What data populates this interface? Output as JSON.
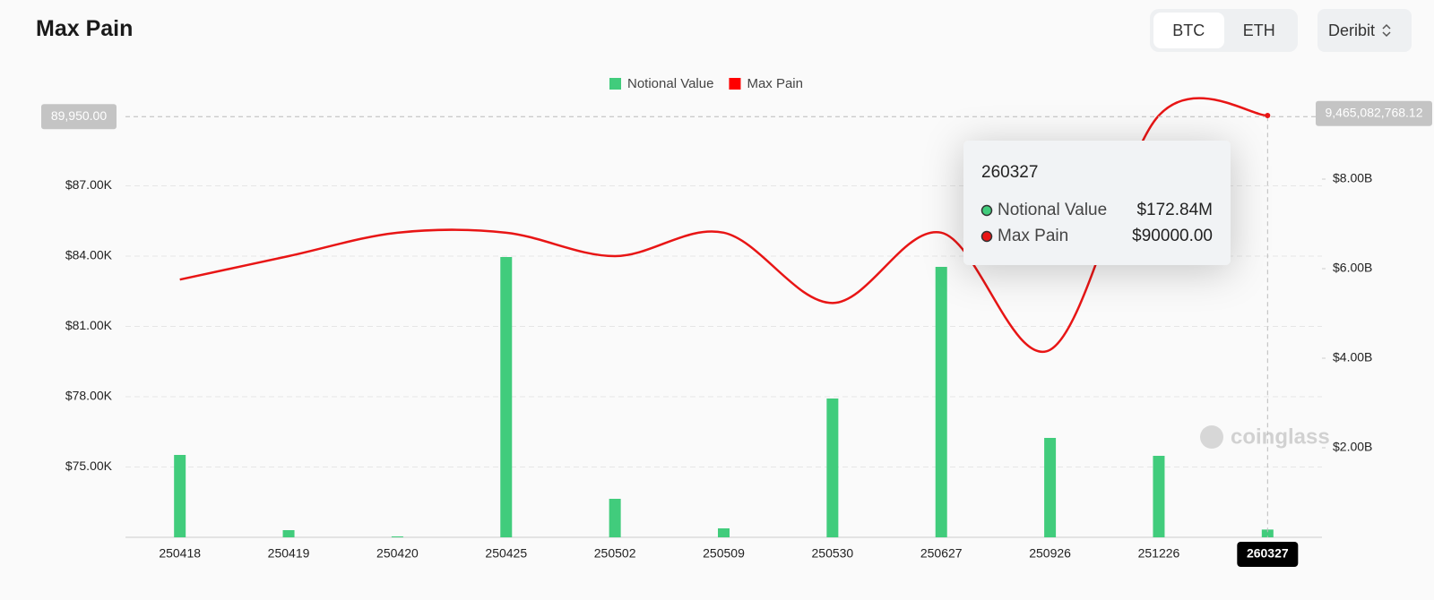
{
  "header": {
    "title": "Max Pain",
    "tabs": [
      "BTC",
      "ETH"
    ],
    "active_tab": 0,
    "exchange": "Deribit"
  },
  "chart_data": {
    "type": "bar-line",
    "categories": [
      "250418",
      "250419",
      "250420",
      "250425",
      "250502",
      "250509",
      "250530",
      "250627",
      "250926",
      "251226",
      "260327"
    ],
    "series": [
      {
        "name": "Notional Value",
        "type": "bar",
        "axis": "y2",
        "color": "#41cc7c",
        "values": [
          1840000000,
          160000000,
          20000000,
          6260000000,
          860000000,
          200000000,
          3100000000,
          6040000000,
          2220000000,
          1820000000,
          172840000
        ]
      },
      {
        "name": "Max Pain",
        "type": "line",
        "axis": "y",
        "color": "#e81515",
        "values": [
          83000,
          84000,
          85000,
          85000,
          84000,
          85000,
          82000,
          85000,
          80000,
          90000,
          90000
        ]
      }
    ],
    "ylim": [
      72000,
      90000
    ],
    "yticks": [
      {
        "value": 75000,
        "label": "$75.00K"
      },
      {
        "value": 78000,
        "label": "$78.00K"
      },
      {
        "value": 81000,
        "label": "$81.00K"
      },
      {
        "value": 84000,
        "label": "$84.00K"
      },
      {
        "value": 87000,
        "label": "$87.00K"
      }
    ],
    "y2lim": [
      0,
      9420000000
    ],
    "y2ticks": [
      {
        "value": 2000000000,
        "label": "$2.00B"
      },
      {
        "value": 4000000000,
        "label": "$4.00B"
      },
      {
        "value": 6000000000,
        "label": "$6.00B"
      },
      {
        "value": 8000000000,
        "label": "$8.00B"
      }
    ],
    "grid": true,
    "legend": "top",
    "highlight": 10,
    "crosshair": {
      "y": {
        "value": 89950,
        "label": "89,950.00"
      },
      "y2": {
        "value": 9465082768.12,
        "label": "9,465,082,768.12"
      }
    },
    "tooltip": {
      "values": [
        "$172.84M",
        "$90000.00"
      ]
    },
    "watermark": "coinglass"
  }
}
